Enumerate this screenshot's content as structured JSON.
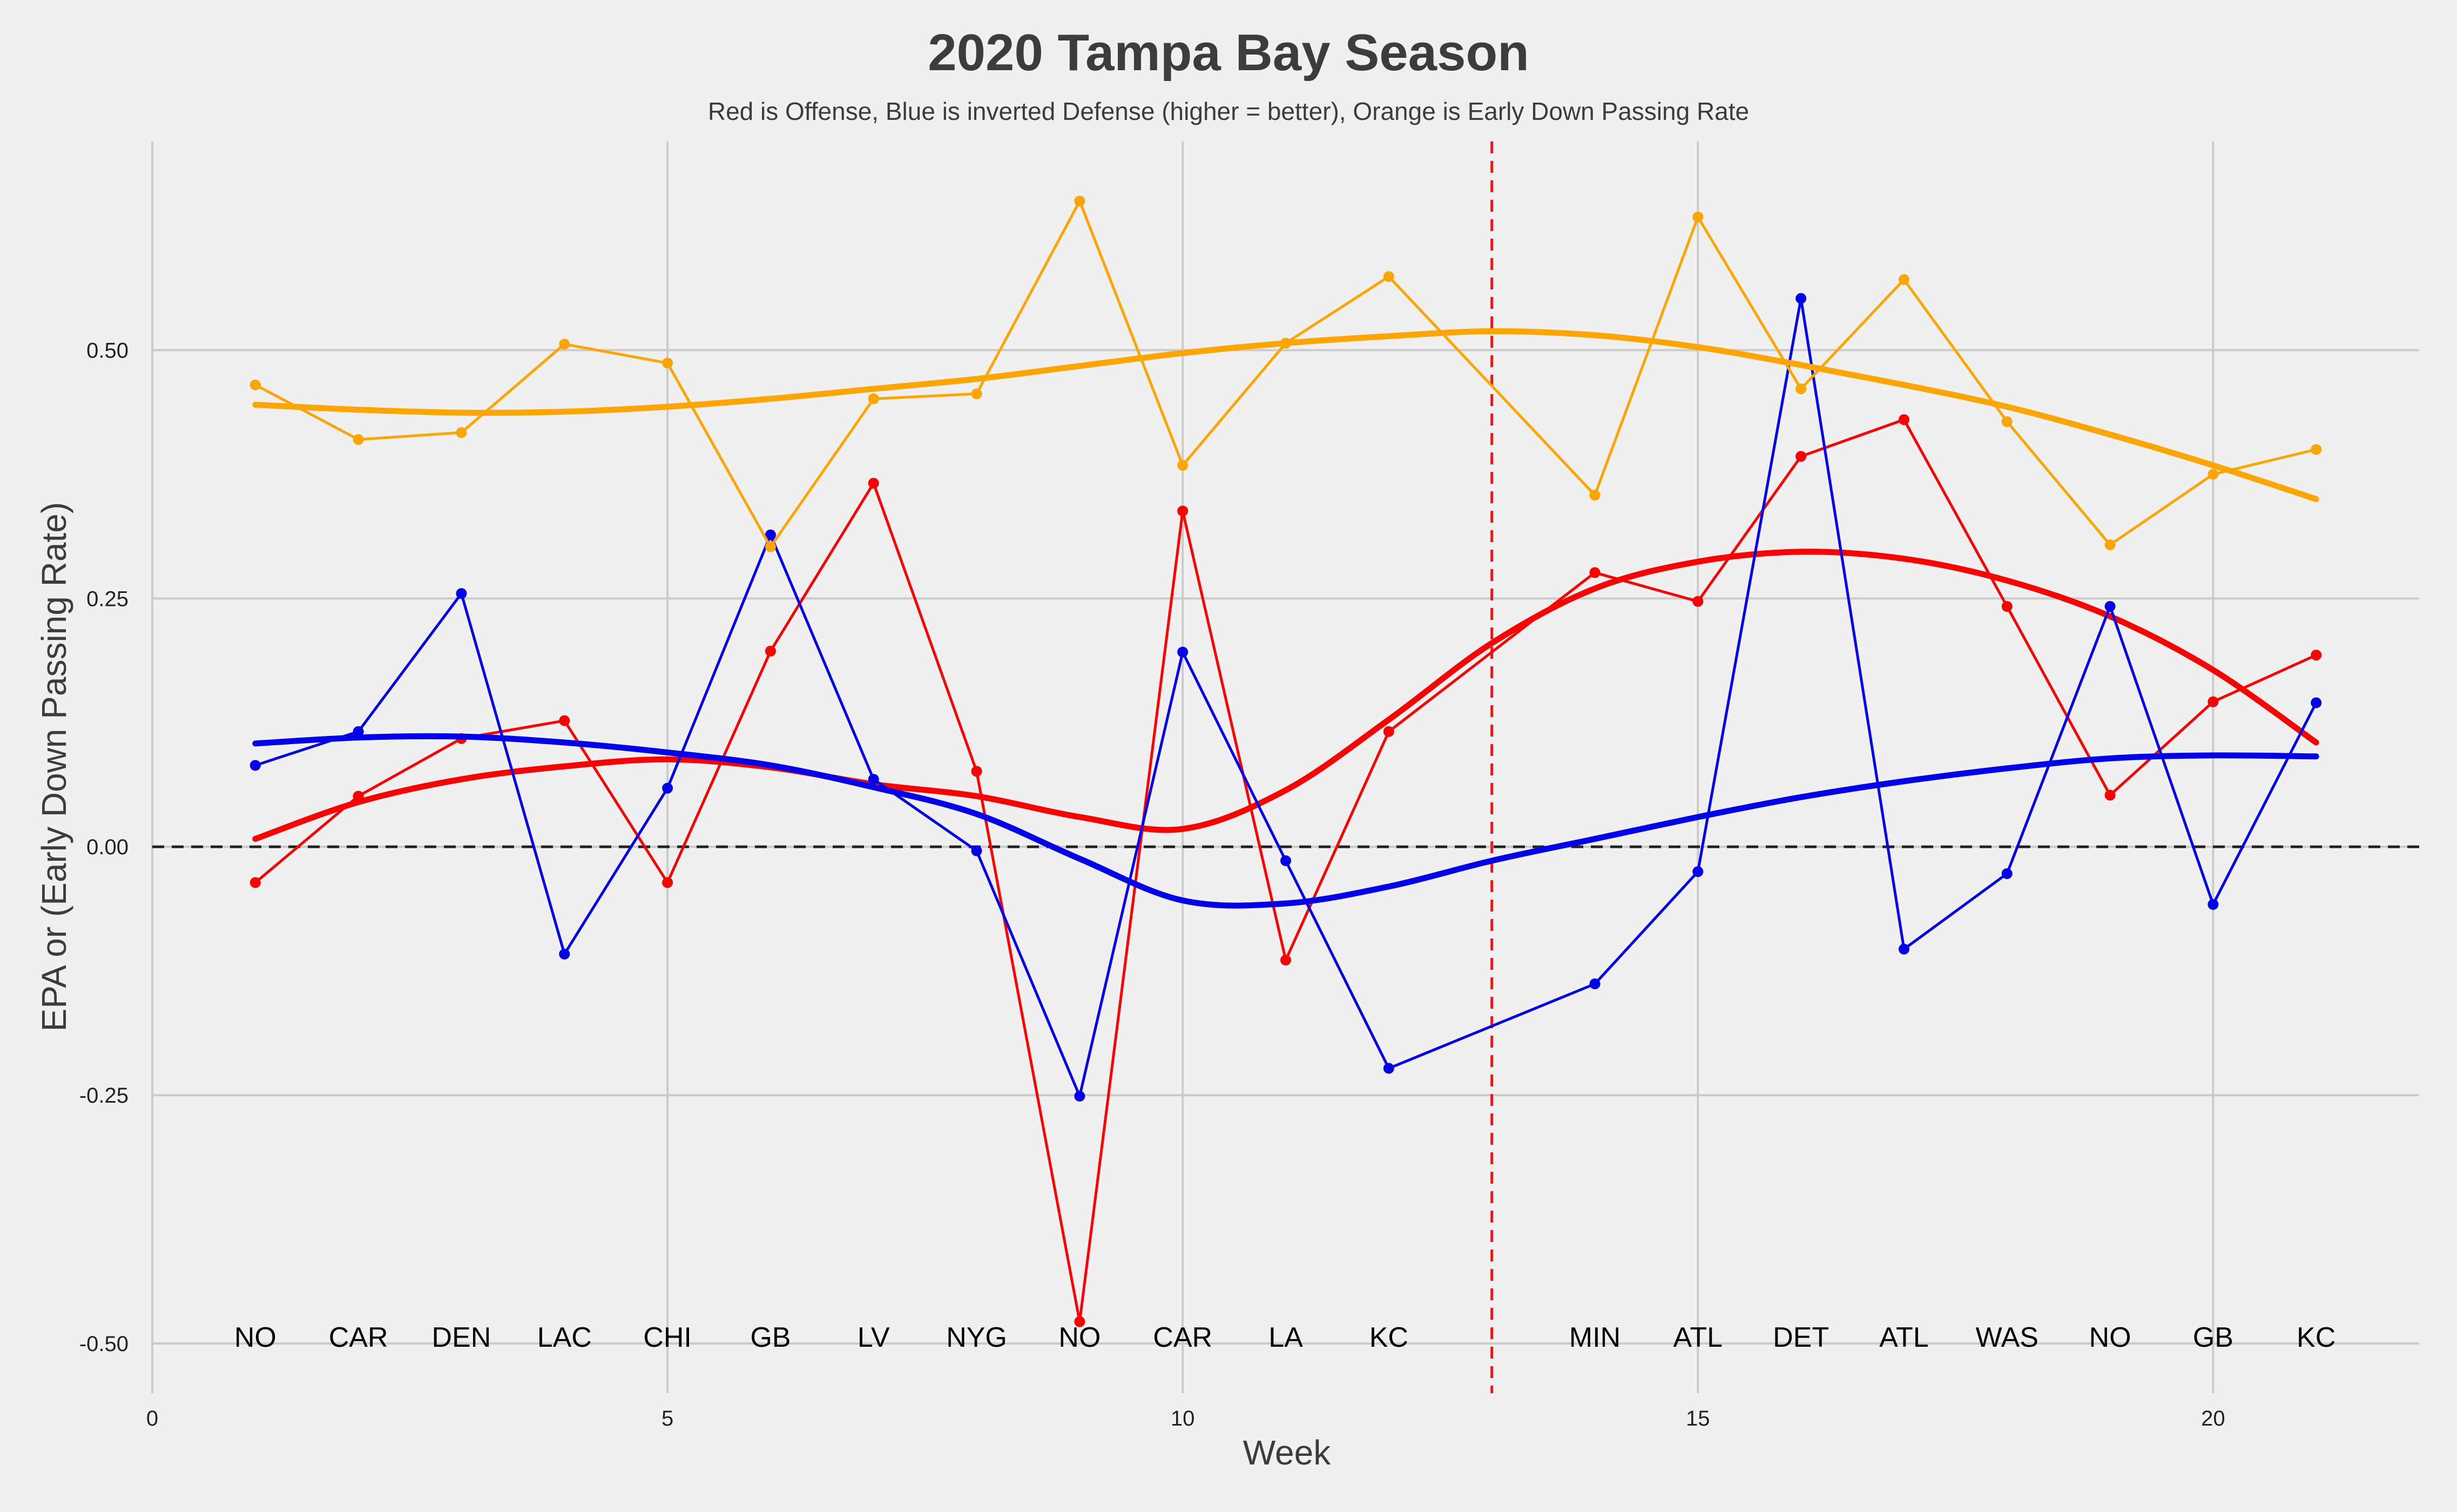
{
  "chart_data": {
    "type": "line",
    "title": "2020 Tampa Bay Season",
    "subtitle": "Red is Offense, Blue is inverted Defense (higher = better), Orange is Early Down Passing Rate",
    "xlabel": "Week",
    "ylabel": "EPA or (Early Down Passing Rate)",
    "xlim": [
      0,
      22
    ],
    "ylim": [
      -0.55,
      0.71
    ],
    "x_ticks": [
      0,
      5,
      10,
      15,
      20
    ],
    "x_tick_labels": [
      "0",
      "5",
      "10",
      "15",
      "20"
    ],
    "y_ticks": [
      -0.5,
      -0.25,
      0,
      0.25,
      0.5
    ],
    "y_tick_labels": [
      "-0.50",
      "-0.25",
      "0.00",
      "0.25",
      "0.50"
    ],
    "grid": true,
    "zero_line": {
      "y": 0,
      "style": "dashed",
      "color": "#222222"
    },
    "vertical_line": {
      "x": 13,
      "style": "dashed",
      "color": "#e41a1c"
    },
    "opponents": [
      {
        "week": 1,
        "label": "NO"
      },
      {
        "week": 2,
        "label": "CAR"
      },
      {
        "week": 3,
        "label": "DEN"
      },
      {
        "week": 4,
        "label": "LAC"
      },
      {
        "week": 5,
        "label": "CHI"
      },
      {
        "week": 6,
        "label": "GB"
      },
      {
        "week": 7,
        "label": "LV"
      },
      {
        "week": 8,
        "label": "NYG"
      },
      {
        "week": 9,
        "label": "NO"
      },
      {
        "week": 10,
        "label": "CAR"
      },
      {
        "week": 11,
        "label": "LA"
      },
      {
        "week": 12,
        "label": "KC"
      },
      {
        "week": 14,
        "label": "MIN"
      },
      {
        "week": 15,
        "label": "ATL"
      },
      {
        "week": 16,
        "label": "DET"
      },
      {
        "week": 17,
        "label": "ATL"
      },
      {
        "week": 18,
        "label": "WAS"
      },
      {
        "week": 19,
        "label": "NO"
      },
      {
        "week": 20,
        "label": "GB"
      },
      {
        "week": 21,
        "label": "KC"
      }
    ],
    "series": [
      {
        "key": "offense",
        "color": "#ff0000",
        "x": [
          1,
          2,
          3,
          4,
          5,
          6,
          7,
          8,
          9,
          10,
          11,
          12,
          14,
          15,
          16,
          17,
          18,
          19,
          20,
          21
        ],
        "values": [
          -0.036,
          0.051,
          0.109,
          0.127,
          -0.036,
          0.197,
          0.366,
          0.076,
          -0.478,
          0.338,
          -0.114,
          0.116,
          0.276,
          0.247,
          0.393,
          0.43,
          0.242,
          0.052,
          0.146,
          0.193
        ],
        "trend": {
          "x": [
            1,
            2,
            3,
            4,
            5,
            6,
            7,
            8,
            9,
            10,
            11,
            12,
            13,
            14,
            15,
            16,
            17,
            18,
            19,
            20,
            21
          ],
          "values": [
            0.008,
            0.045,
            0.068,
            0.081,
            0.088,
            0.08,
            0.063,
            0.051,
            0.03,
            0.018,
            0.057,
            0.128,
            0.205,
            0.26,
            0.287,
            0.297,
            0.29,
            0.268,
            0.232,
            0.178,
            0.105
          ]
        }
      },
      {
        "key": "defense_inverted",
        "color": "#0000ee",
        "x": [
          1,
          2,
          3,
          4,
          5,
          6,
          7,
          8,
          9,
          10,
          11,
          12,
          14,
          15,
          16,
          17,
          18,
          19,
          20,
          21
        ],
        "values": [
          0.082,
          0.116,
          0.255,
          -0.108,
          0.059,
          0.314,
          0.068,
          -0.004,
          -0.251,
          0.196,
          -0.014,
          -0.223,
          -0.138,
          -0.025,
          0.552,
          -0.103,
          -0.027,
          0.242,
          -0.058,
          0.145
        ],
        "trend": {
          "x": [
            1,
            2,
            3,
            4,
            5,
            6,
            7,
            8,
            9,
            10,
            11,
            12,
            13,
            14,
            15,
            16,
            17,
            18,
            19,
            20,
            21
          ],
          "values": [
            0.104,
            0.11,
            0.111,
            0.105,
            0.095,
            0.082,
            0.06,
            0.033,
            -0.012,
            -0.054,
            -0.057,
            -0.04,
            -0.014,
            0.008,
            0.03,
            0.05,
            0.066,
            0.079,
            0.089,
            0.092,
            0.091
          ]
        }
      },
      {
        "key": "early_down_pass_rate",
        "color": "#ffa500",
        "x": [
          1,
          2,
          3,
          4,
          5,
          6,
          7,
          8,
          9,
          10,
          11,
          12,
          14,
          15,
          16,
          17,
          18,
          19,
          20,
          21
        ],
        "values": [
          0.465,
          0.41,
          0.417,
          0.506,
          0.487,
          0.302,
          0.451,
          0.456,
          0.65,
          0.384,
          0.507,
          0.574,
          0.354,
          0.634,
          0.461,
          0.571,
          0.428,
          0.304,
          0.375,
          0.4
        ],
        "trend": {
          "x": [
            1,
            2,
            3,
            4,
            5,
            6,
            7,
            8,
            9,
            10,
            11,
            12,
            13,
            14,
            15,
            16,
            17,
            18,
            19,
            20,
            21
          ],
          "values": [
            0.445,
            0.44,
            0.437,
            0.438,
            0.443,
            0.451,
            0.461,
            0.471,
            0.484,
            0.497,
            0.507,
            0.514,
            0.519,
            0.515,
            0.503,
            0.485,
            0.465,
            0.443,
            0.415,
            0.384,
            0.35
          ]
        }
      }
    ]
  }
}
